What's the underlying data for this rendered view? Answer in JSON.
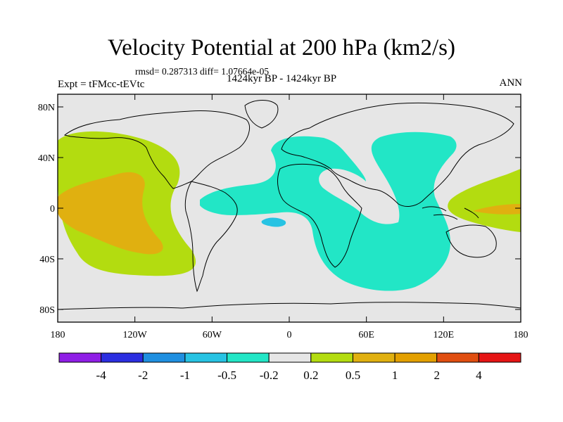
{
  "title": "Velocity Potential at 200 hPa (km2/s)",
  "stats": "rmsd= 0.287313 diff= 1.07664e-05",
  "left_label": "Expt = tFMcc-tEVtc",
  "center_label": "1424kyr BP - 1424kyr BP",
  "right_label": "ANN",
  "lat_ticks": [
    "80N",
    "40N",
    "0",
    "40S",
    "80S"
  ],
  "lon_ticks": [
    "180",
    "120W",
    "60W",
    "0",
    "60E",
    "120E",
    "180"
  ],
  "colorbar": {
    "labels": [
      "-4",
      "-2",
      "-1",
      "-0.5",
      "-0.2",
      "0.2",
      "0.5",
      "1",
      "2",
      "4"
    ],
    "colors": [
      "#8f1ee6",
      "#2b2ee0",
      "#1f8fe0",
      "#27c3e3",
      "#22e6c6",
      "#e6e6e6",
      "#b3dc10",
      "#e0b010",
      "#e3a000",
      "#e04e10",
      "#e51414"
    ]
  },
  "colors": {
    "background": "#e6e6e6",
    "neg_low": "#22e6c6",
    "neg_mid": "#27c3e3",
    "pos_low": "#b3dc10",
    "pos_mid": "#e0b010"
  }
}
